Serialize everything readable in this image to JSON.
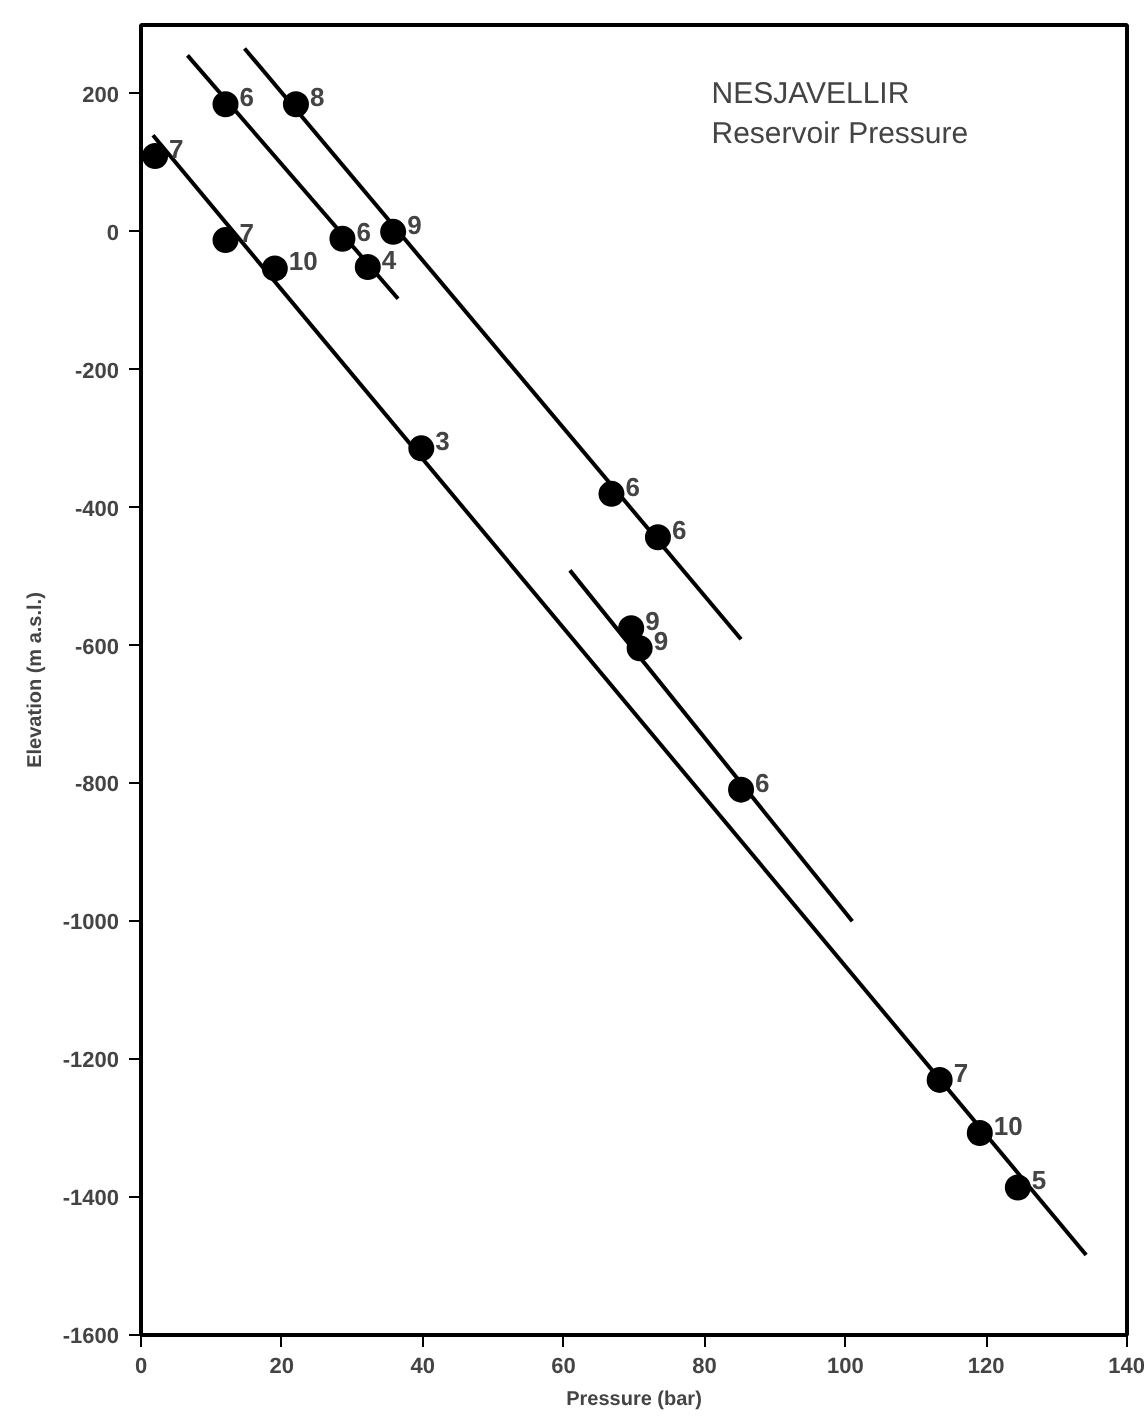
{
  "chart_data": {
    "type": "scatter",
    "title": "NESJAVELLIR\nReservoir Pressure",
    "xlabel": "Pressure (bar)",
    "ylabel": "Elevation (m a.s.l.)",
    "xlim": [
      0,
      140
    ],
    "ylim": [
      -1600,
      300
    ],
    "xticks": [
      0,
      20,
      40,
      60,
      80,
      100,
      120,
      140
    ],
    "yticks": [
      -1600,
      -1400,
      -1200,
      -1000,
      -800,
      -600,
      -400,
      -200,
      0,
      200
    ],
    "grid": false,
    "series": [
      {
        "color": "#000000",
        "marker": "circle",
        "x": [
          2,
          12,
          22,
          12,
          19,
          28.6,
          32.2,
          35.8,
          39.8,
          66.8,
          73.4,
          69.6,
          70.8,
          85.2,
          113.4,
          119.1,
          124.5
        ],
        "values": [
          110,
          185,
          185,
          -12,
          -53,
          -10,
          -51,
          0,
          -314,
          -380,
          -443,
          -575,
          -604,
          -809,
          -1230,
          -1307,
          -1386
        ]
      },
      {
        "type": "line",
        "color": "#000000",
        "marker": "none",
        "line_style": "solid",
        "x": [
          1.7,
          134.2
        ],
        "values": [
          140,
          -1484
        ]
      },
      {
        "type": "line",
        "color": "#000000",
        "marker": "none",
        "line_style": "solid",
        "x": [
          6.6,
          36.5
        ],
        "values": [
          256,
          -97
        ]
      },
      {
        "type": "line",
        "color": "#000000",
        "marker": "none",
        "line_style": "solid",
        "x": [
          14.7,
          85.2
        ],
        "values": [
          266,
          -591
        ]
      },
      {
        "type": "line",
        "color": "#000000",
        "marker": "none",
        "line_style": "solid",
        "x": [
          60.9,
          101
        ],
        "values": [
          -491,
          -1000
        ]
      }
    ],
    "annotations": [
      {
        "text": "7",
        "x": 2,
        "y": 110
      },
      {
        "text": "6",
        "x": 12,
        "y": 185
      },
      {
        "text": "8",
        "x": 22,
        "y": 185
      },
      {
        "text": "7",
        "x": 12,
        "y": -12
      },
      {
        "text": "10",
        "x": 19,
        "y": -53
      },
      {
        "text": "6",
        "x": 28.6,
        "y": -10
      },
      {
        "text": "4",
        "x": 32.2,
        "y": -51
      },
      {
        "text": "9",
        "x": 35.8,
        "y": 0
      },
      {
        "text": "3",
        "x": 39.8,
        "y": -314
      },
      {
        "text": "6",
        "x": 66.8,
        "y": -380
      },
      {
        "text": "6",
        "x": 73.4,
        "y": -443
      },
      {
        "text": "9",
        "x": 69.6,
        "y": -575
      },
      {
        "text": "9",
        "x": 70.8,
        "y": -604
      },
      {
        "text": "6",
        "x": 85.2,
        "y": -809
      },
      {
        "text": "7",
        "x": 113.4,
        "y": -1230
      },
      {
        "text": "10",
        "x": 119.1,
        "y": -1307
      },
      {
        "text": "5",
        "x": 124.5,
        "y": -1386
      }
    ]
  }
}
